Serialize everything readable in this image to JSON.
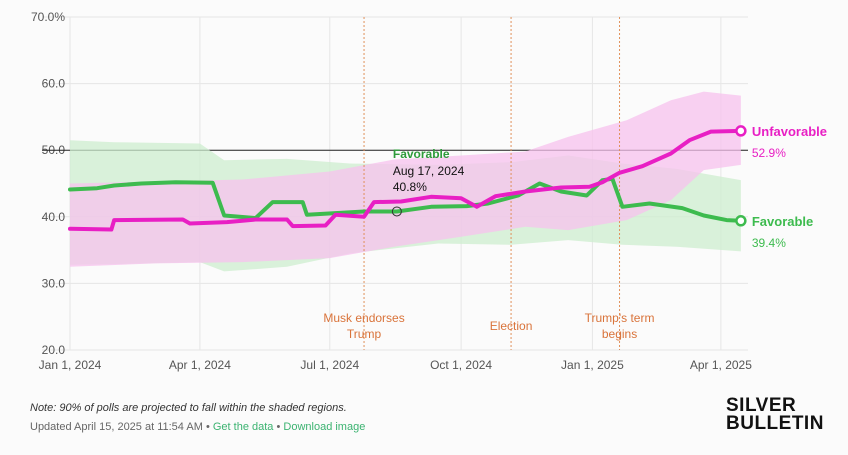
{
  "chart_data": {
    "type": "line",
    "title": "",
    "xlabel": "",
    "ylabel": "",
    "ylim": [
      20,
      70
    ],
    "x_range": [
      "2024-01-01",
      "2025-04-20"
    ],
    "y_ticks": [
      20,
      30,
      40,
      50,
      60,
      70
    ],
    "y_tick_labels": [
      "20.0",
      "30.0",
      "40.0",
      "50.0",
      "60.0",
      "70.0%"
    ],
    "x_ticks": [
      "2024-01-01",
      "2024-04-01",
      "2024-07-01",
      "2024-10-01",
      "2025-01-01",
      "2025-04-01"
    ],
    "x_tick_labels": [
      "Jan 1, 2024",
      "Apr 1, 2024",
      "Jul 1, 2024",
      "Oct 1, 2024",
      "Jan 1, 2025",
      "Apr 1, 2025"
    ],
    "reference_line": 50,
    "series": [
      {
        "name": "Favorable",
        "color": "#3dbb4e",
        "band_color": "#cdeecf",
        "end_label": "Favorable",
        "end_value": "39.4%",
        "points": [
          [
            "2024-01-01",
            44.1
          ],
          [
            "2024-01-20",
            44.3
          ],
          [
            "2024-02-01",
            44.7
          ],
          [
            "2024-02-20",
            45.0
          ],
          [
            "2024-03-15",
            45.2
          ],
          [
            "2024-04-10",
            45.1
          ],
          [
            "2024-04-18",
            40.2
          ],
          [
            "2024-05-10",
            39.8
          ],
          [
            "2024-05-22",
            42.2
          ],
          [
            "2024-06-12",
            42.2
          ],
          [
            "2024-06-15",
            40.3
          ],
          [
            "2024-07-25",
            40.8
          ],
          [
            "2024-08-17",
            40.8
          ],
          [
            "2024-09-10",
            41.5
          ],
          [
            "2024-10-05",
            41.6
          ],
          [
            "2024-10-20",
            42.0
          ],
          [
            "2024-11-10",
            43.2
          ],
          [
            "2024-11-25",
            45.0
          ],
          [
            "2024-12-10",
            43.8
          ],
          [
            "2024-12-28",
            43.2
          ],
          [
            "2025-01-08",
            45.5
          ],
          [
            "2025-01-15",
            45.7
          ],
          [
            "2025-01-22",
            41.5
          ],
          [
            "2025-02-10",
            42.0
          ],
          [
            "2025-03-05",
            41.3
          ],
          [
            "2025-03-20",
            40.2
          ],
          [
            "2025-04-05",
            39.5
          ],
          [
            "2025-04-15",
            39.4
          ]
        ],
        "band": [
          [
            "2024-01-01",
            32.8,
            51.5
          ],
          [
            "2024-02-01",
            32.9,
            51.2
          ],
          [
            "2024-04-01",
            33.2,
            51.0
          ],
          [
            "2024-04-18",
            31.8,
            48.5
          ],
          [
            "2024-06-01",
            32.5,
            48.7
          ],
          [
            "2024-07-15",
            34.5,
            48.0
          ],
          [
            "2024-09-15",
            36.0,
            47.8
          ],
          [
            "2024-11-05",
            35.8,
            48.2
          ],
          [
            "2024-12-15",
            36.5,
            49.2
          ],
          [
            "2025-01-22",
            35.8,
            48.0
          ],
          [
            "2025-03-01",
            35.5,
            47.2
          ],
          [
            "2025-04-15",
            34.8,
            45.5
          ]
        ]
      },
      {
        "name": "Unfavorable",
        "color": "#e81fc4",
        "band_color": "#f7c2ee",
        "end_label": "Unfavorable",
        "end_value": "52.9%",
        "points": [
          [
            "2024-01-01",
            38.2
          ],
          [
            "2024-01-30",
            38.1
          ],
          [
            "2024-02-01",
            39.5
          ],
          [
            "2024-03-20",
            39.6
          ],
          [
            "2024-03-25",
            39.0
          ],
          [
            "2024-04-20",
            39.2
          ],
          [
            "2024-05-10",
            39.6
          ],
          [
            "2024-06-01",
            39.6
          ],
          [
            "2024-06-05",
            38.6
          ],
          [
            "2024-06-28",
            38.7
          ],
          [
            "2024-07-05",
            40.3
          ],
          [
            "2024-07-25",
            40.0
          ],
          [
            "2024-08-01",
            42.2
          ],
          [
            "2024-08-20",
            42.3
          ],
          [
            "2024-09-10",
            43.0
          ],
          [
            "2024-10-01",
            42.8
          ],
          [
            "2024-10-12",
            41.5
          ],
          [
            "2024-10-25",
            43.1
          ],
          [
            "2024-11-15",
            43.8
          ],
          [
            "2024-12-10",
            44.4
          ],
          [
            "2024-12-30",
            44.5
          ],
          [
            "2025-01-08",
            45.2
          ],
          [
            "2025-01-20",
            46.6
          ],
          [
            "2025-02-05",
            47.6
          ],
          [
            "2025-02-25",
            49.5
          ],
          [
            "2025-03-10",
            51.5
          ],
          [
            "2025-03-25",
            52.8
          ],
          [
            "2025-04-15",
            52.9
          ]
        ],
        "band": [
          [
            "2024-01-01",
            32.5,
            45.0
          ],
          [
            "2024-03-01",
            33.0,
            45.3
          ],
          [
            "2024-05-01",
            33.2,
            45.6
          ],
          [
            "2024-07-01",
            33.8,
            46.8
          ],
          [
            "2024-08-15",
            35.5,
            48.6
          ],
          [
            "2024-10-01",
            37.0,
            49.2
          ],
          [
            "2024-11-15",
            38.5,
            49.8
          ],
          [
            "2024-12-15",
            38.0,
            52.0
          ],
          [
            "2025-01-25",
            39.5,
            54.5
          ],
          [
            "2025-02-25",
            42.5,
            57.5
          ],
          [
            "2025-03-20",
            47.0,
            58.8
          ],
          [
            "2025-04-15",
            47.8,
            58.2
          ]
        ]
      }
    ],
    "annotations": [
      {
        "date": "2024-07-25",
        "lines": [
          "Musk endorses",
          "Trump"
        ]
      },
      {
        "date": "2024-11-05",
        "lines": [
          "Election"
        ]
      },
      {
        "date": "2025-01-20",
        "lines": [
          "Trump's term",
          "begins"
        ]
      }
    ],
    "tooltip": {
      "series": "Favorable",
      "date": "2024-08-17",
      "title": "Favorable",
      "date_label": "Aug 17, 2024",
      "value_label": "40.8%"
    }
  },
  "footer": {
    "note": "Note: 90% of polls are projected to fall within the shaded regions.",
    "updated": "Updated April 15, 2025 at 11:54 AM",
    "separator": "•",
    "get_data_link": "Get the data",
    "download_link": "Download image"
  },
  "brand": {
    "line1": "SILVER",
    "line2": "BULLETIN"
  }
}
